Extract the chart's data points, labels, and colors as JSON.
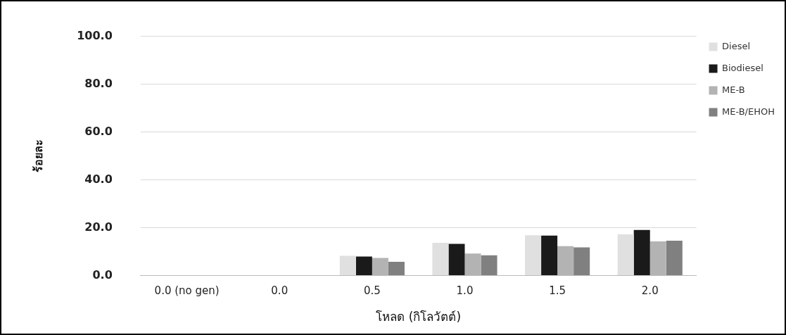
{
  "chart_data": {
    "type": "bar",
    "xlabel": "โหลด (กิโลวัตต์)",
    "ylabel": "ร้อยละ",
    "categories": [
      "0.0 (no gen)",
      "0.0",
      "0.5",
      "1.0",
      "1.5",
      "2.0"
    ],
    "series": [
      {
        "name": "Diesel",
        "color": "#e0e0e0",
        "values": [
          null,
          null,
          8.3,
          13.7,
          16.9,
          17.2
        ]
      },
      {
        "name": "Biodiesel",
        "color": "#1a1a1a",
        "values": [
          null,
          null,
          8.0,
          13.3,
          16.7,
          19.1
        ]
      },
      {
        "name": "ME-B",
        "color": "#b3b3b3",
        "values": [
          null,
          null,
          7.4,
          9.2,
          12.3,
          14.3
        ]
      },
      {
        "name": "ME-B/EHOH",
        "color": "#808080",
        "values": [
          null,
          null,
          5.8,
          8.5,
          11.8,
          14.6
        ]
      }
    ],
    "ylim": [
      0,
      100
    ],
    "yticks": [
      {
        "value": 0,
        "label": "0.0"
      },
      {
        "value": 20,
        "label": "20.0"
      },
      {
        "value": 40,
        "label": "40.0"
      },
      {
        "value": 60,
        "label": "60.0"
      },
      {
        "value": 80,
        "label": "80.0"
      },
      {
        "value": 100,
        "label": "100.0"
      }
    ],
    "grid": "y",
    "legend": "top right"
  }
}
